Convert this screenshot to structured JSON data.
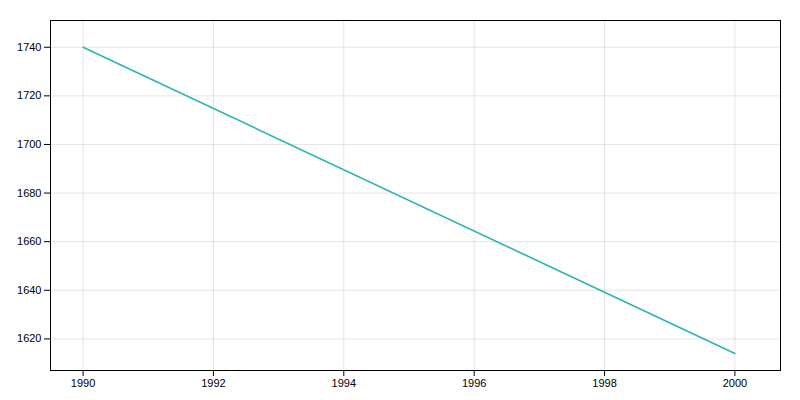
{
  "chart_data": {
    "type": "line",
    "x": [
      1990,
      2000
    ],
    "values": [
      1740,
      1614
    ],
    "color": "#2ab5b5",
    "xlim": [
      1989.5,
      2000.7
    ],
    "ylim": [
      1607,
      1751
    ],
    "xticks": [
      1990,
      1992,
      1994,
      1996,
      1998,
      2000
    ],
    "yticks": [
      1620,
      1640,
      1660,
      1680,
      1700,
      1720,
      1740
    ],
    "grid": true
  }
}
